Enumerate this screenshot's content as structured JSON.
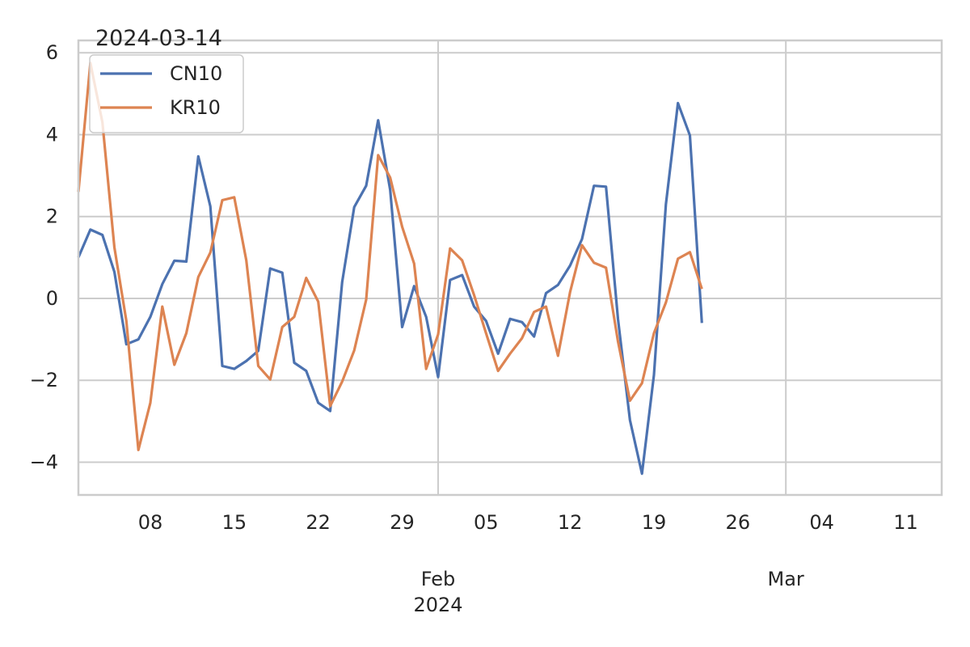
{
  "chart_data": {
    "type": "line",
    "title": "2024-03-14",
    "xlabel": "",
    "ylabel": "",
    "grid": true,
    "legend_position": "top-left",
    "x_start": "2024-01-02",
    "x_range": [
      "2024-01-02",
      "2024-03-14"
    ],
    "ylim": [
      -4.8,
      6.3
    ],
    "y_ticks": [
      -4,
      -2,
      0,
      2,
      4,
      6
    ],
    "y_tick_labels": [
      "−4",
      "−2",
      "0",
      "2",
      "4",
      "6"
    ],
    "x_minor_ticks": [
      {
        "date": "2024-01-08",
        "label": "08"
      },
      {
        "date": "2024-01-15",
        "label": "15"
      },
      {
        "date": "2024-01-22",
        "label": "22"
      },
      {
        "date": "2024-01-29",
        "label": "29"
      },
      {
        "date": "2024-02-05",
        "label": "05"
      },
      {
        "date": "2024-02-12",
        "label": "12"
      },
      {
        "date": "2024-02-19",
        "label": "19"
      },
      {
        "date": "2024-02-26",
        "label": "26"
      },
      {
        "date": "2024-03-04",
        "label": "04"
      },
      {
        "date": "2024-03-11",
        "label": "11"
      }
    ],
    "x_major_ticks": [
      {
        "date": "2024-02-01",
        "label": "Feb",
        "sublabel": "2024"
      },
      {
        "date": "2024-03-01",
        "label": "Mar",
        "sublabel": ""
      }
    ],
    "series": [
      {
        "name": "CN10",
        "color": "#4c72b0",
        "values": [
          1.0,
          1.68,
          1.55,
          0.65,
          -1.12,
          -1.0,
          -0.45,
          0.35,
          0.92,
          0.9,
          3.47,
          2.25,
          -1.65,
          -1.72,
          -1.53,
          -1.28,
          0.73,
          0.63,
          -1.57,
          -1.77,
          -2.55,
          -2.75,
          0.4,
          2.23,
          2.75,
          4.35,
          2.65,
          -0.7,
          0.3,
          -0.45,
          -1.92,
          0.45,
          0.57,
          -0.2,
          -0.55,
          -1.35,
          -0.5,
          -0.58,
          -0.93,
          0.13,
          0.33,
          0.8,
          1.45,
          2.75,
          2.73,
          -0.5,
          -2.97,
          -4.28,
          -1.87,
          2.3,
          4.77,
          3.98,
          -0.6
        ]
      },
      {
        "name": "KR10",
        "color": "#dd8452",
        "values": [
          2.6,
          5.75,
          4.3,
          1.25,
          -0.55,
          -3.7,
          -2.55,
          -0.2,
          -1.62,
          -0.85,
          0.52,
          1.12,
          2.4,
          2.47,
          0.93,
          -1.65,
          -1.98,
          -0.7,
          -0.45,
          0.5,
          -0.08,
          -2.63,
          -2.03,
          -1.27,
          -0.03,
          3.5,
          2.95,
          1.75,
          0.85,
          -1.72,
          -0.88,
          1.22,
          0.93,
          0.08,
          -0.85,
          -1.77,
          -1.35,
          -0.97,
          -0.33,
          -0.2,
          -1.4,
          0.15,
          1.3,
          0.87,
          0.75,
          -1.05,
          -2.5,
          -2.07,
          -0.85,
          -0.1,
          0.97,
          1.13,
          0.23
        ]
      }
    ]
  }
}
